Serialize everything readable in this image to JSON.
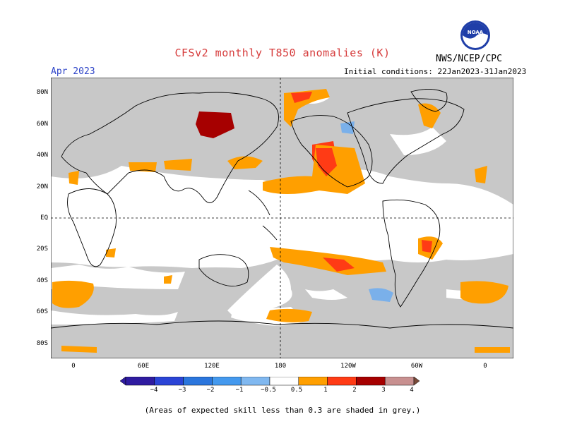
{
  "header": {
    "title": "CFSv2 monthly T850 anomalies (K)",
    "month": "Apr 2023",
    "initial_conditions": "Initial conditions: 22Jan2023-31Jan2023",
    "agency": "NWS/NCEP/CPC",
    "logo_text": "NOAA"
  },
  "map": {
    "lat_labels": [
      "80N",
      "60N",
      "40N",
      "20N",
      "EQ",
      "20S",
      "40S",
      "60S",
      "80S"
    ],
    "lon_labels": [
      "0",
      "60E",
      "120E",
      "180",
      "120W",
      "60W",
      "0"
    ],
    "colors": {
      "grey_low_skill": "#c8c8c8",
      "ocean_land": "#ffffff",
      "warm_0_5_1": "#ff9f00",
      "warm_1_2": "#ff3b15",
      "warm_2_3": "#a60000",
      "cool_minus1_minus0_5": "#7ab0ea"
    }
  },
  "colorbar": {
    "labels": [
      "−4",
      "−3",
      "−2",
      "−1",
      "−0.5",
      "0.5",
      "1",
      "2",
      "3",
      "4"
    ],
    "colors": [
      "#2f1ba0",
      "#2b44d6",
      "#2b76dd",
      "#4499ee",
      "#80b8f0",
      "#ffffff",
      "#ff9f00",
      "#ff3b15",
      "#a60000",
      "#c89090",
      "#7a4b3a"
    ]
  },
  "note": "(Areas of expected skill less than 0.3 are shaded in grey.)"
}
